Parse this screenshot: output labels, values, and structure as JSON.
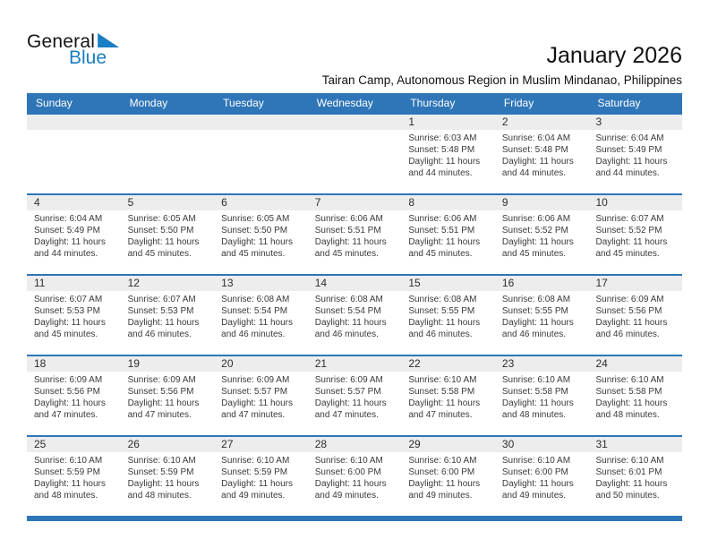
{
  "logo": {
    "general": "General",
    "blue": "Blue"
  },
  "header": {
    "title": "January 2026",
    "subtitle": "Tairan Camp, Autonomous Region in Muslim Mindanao, Philippines"
  },
  "colors": {
    "accent": "#2f76b8",
    "logo_blue": "#1a7ec2",
    "number_band": "#ededed"
  },
  "weekdays": [
    "Sunday",
    "Monday",
    "Tuesday",
    "Wednesday",
    "Thursday",
    "Friday",
    "Saturday"
  ],
  "weeks": [
    [
      null,
      null,
      null,
      null,
      {
        "day": "1",
        "lines": [
          "Sunrise: 6:03 AM",
          "Sunset: 5:48 PM",
          "Daylight: 11 hours",
          "and 44 minutes."
        ]
      },
      {
        "day": "2",
        "lines": [
          "Sunrise: 6:04 AM",
          "Sunset: 5:48 PM",
          "Daylight: 11 hours",
          "and 44 minutes."
        ]
      },
      {
        "day": "3",
        "lines": [
          "Sunrise: 6:04 AM",
          "Sunset: 5:49 PM",
          "Daylight: 11 hours",
          "and 44 minutes."
        ]
      }
    ],
    [
      {
        "day": "4",
        "lines": [
          "Sunrise: 6:04 AM",
          "Sunset: 5:49 PM",
          "Daylight: 11 hours",
          "and 44 minutes."
        ]
      },
      {
        "day": "5",
        "lines": [
          "Sunrise: 6:05 AM",
          "Sunset: 5:50 PM",
          "Daylight: 11 hours",
          "and 45 minutes."
        ]
      },
      {
        "day": "6",
        "lines": [
          "Sunrise: 6:05 AM",
          "Sunset: 5:50 PM",
          "Daylight: 11 hours",
          "and 45 minutes."
        ]
      },
      {
        "day": "7",
        "lines": [
          "Sunrise: 6:06 AM",
          "Sunset: 5:51 PM",
          "Daylight: 11 hours",
          "and 45 minutes."
        ]
      },
      {
        "day": "8",
        "lines": [
          "Sunrise: 6:06 AM",
          "Sunset: 5:51 PM",
          "Daylight: 11 hours",
          "and 45 minutes."
        ]
      },
      {
        "day": "9",
        "lines": [
          "Sunrise: 6:06 AM",
          "Sunset: 5:52 PM",
          "Daylight: 11 hours",
          "and 45 minutes."
        ]
      },
      {
        "day": "10",
        "lines": [
          "Sunrise: 6:07 AM",
          "Sunset: 5:52 PM",
          "Daylight: 11 hours",
          "and 45 minutes."
        ]
      }
    ],
    [
      {
        "day": "11",
        "lines": [
          "Sunrise: 6:07 AM",
          "Sunset: 5:53 PM",
          "Daylight: 11 hours",
          "and 45 minutes."
        ]
      },
      {
        "day": "12",
        "lines": [
          "Sunrise: 6:07 AM",
          "Sunset: 5:53 PM",
          "Daylight: 11 hours",
          "and 46 minutes."
        ]
      },
      {
        "day": "13",
        "lines": [
          "Sunrise: 6:08 AM",
          "Sunset: 5:54 PM",
          "Daylight: 11 hours",
          "and 46 minutes."
        ]
      },
      {
        "day": "14",
        "lines": [
          "Sunrise: 6:08 AM",
          "Sunset: 5:54 PM",
          "Daylight: 11 hours",
          "and 46 minutes."
        ]
      },
      {
        "day": "15",
        "lines": [
          "Sunrise: 6:08 AM",
          "Sunset: 5:55 PM",
          "Daylight: 11 hours",
          "and 46 minutes."
        ]
      },
      {
        "day": "16",
        "lines": [
          "Sunrise: 6:08 AM",
          "Sunset: 5:55 PM",
          "Daylight: 11 hours",
          "and 46 minutes."
        ]
      },
      {
        "day": "17",
        "lines": [
          "Sunrise: 6:09 AM",
          "Sunset: 5:56 PM",
          "Daylight: 11 hours",
          "and 46 minutes."
        ]
      }
    ],
    [
      {
        "day": "18",
        "lines": [
          "Sunrise: 6:09 AM",
          "Sunset: 5:56 PM",
          "Daylight: 11 hours",
          "and 47 minutes."
        ]
      },
      {
        "day": "19",
        "lines": [
          "Sunrise: 6:09 AM",
          "Sunset: 5:56 PM",
          "Daylight: 11 hours",
          "and 47 minutes."
        ]
      },
      {
        "day": "20",
        "lines": [
          "Sunrise: 6:09 AM",
          "Sunset: 5:57 PM",
          "Daylight: 11 hours",
          "and 47 minutes."
        ]
      },
      {
        "day": "21",
        "lines": [
          "Sunrise: 6:09 AM",
          "Sunset: 5:57 PM",
          "Daylight: 11 hours",
          "and 47 minutes."
        ]
      },
      {
        "day": "22",
        "lines": [
          "Sunrise: 6:10 AM",
          "Sunset: 5:58 PM",
          "Daylight: 11 hours",
          "and 47 minutes."
        ]
      },
      {
        "day": "23",
        "lines": [
          "Sunrise: 6:10 AM",
          "Sunset: 5:58 PM",
          "Daylight: 11 hours",
          "and 48 minutes."
        ]
      },
      {
        "day": "24",
        "lines": [
          "Sunrise: 6:10 AM",
          "Sunset: 5:58 PM",
          "Daylight: 11 hours",
          "and 48 minutes."
        ]
      }
    ],
    [
      {
        "day": "25",
        "lines": [
          "Sunrise: 6:10 AM",
          "Sunset: 5:59 PM",
          "Daylight: 11 hours",
          "and 48 minutes."
        ]
      },
      {
        "day": "26",
        "lines": [
          "Sunrise: 6:10 AM",
          "Sunset: 5:59 PM",
          "Daylight: 11 hours",
          "and 48 minutes."
        ]
      },
      {
        "day": "27",
        "lines": [
          "Sunrise: 6:10 AM",
          "Sunset: 5:59 PM",
          "Daylight: 11 hours",
          "and 49 minutes."
        ]
      },
      {
        "day": "28",
        "lines": [
          "Sunrise: 6:10 AM",
          "Sunset: 6:00 PM",
          "Daylight: 11 hours",
          "and 49 minutes."
        ]
      },
      {
        "day": "29",
        "lines": [
          "Sunrise: 6:10 AM",
          "Sunset: 6:00 PM",
          "Daylight: 11 hours",
          "and 49 minutes."
        ]
      },
      {
        "day": "30",
        "lines": [
          "Sunrise: 6:10 AM",
          "Sunset: 6:00 PM",
          "Daylight: 11 hours",
          "and 49 minutes."
        ]
      },
      {
        "day": "31",
        "lines": [
          "Sunrise: 6:10 AM",
          "Sunset: 6:01 PM",
          "Daylight: 11 hours",
          "and 50 minutes."
        ]
      }
    ]
  ]
}
